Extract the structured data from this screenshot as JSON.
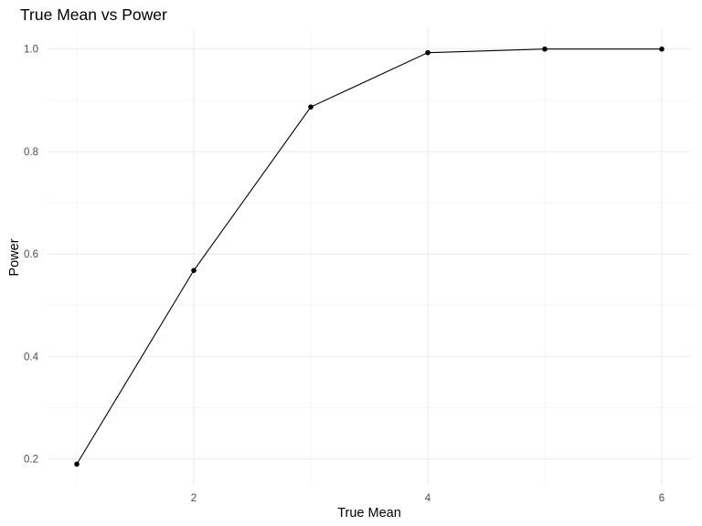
{
  "chart_data": {
    "type": "line",
    "title": "True Mean vs Power",
    "xlabel": "True Mean",
    "ylabel": "Power",
    "xlim": [
      1,
      6
    ],
    "ylim": [
      0.19,
      1.0
    ],
    "x_ticks": [
      2,
      4,
      6
    ],
    "x_minor_ticks": [
      1,
      3,
      5
    ],
    "y_ticks": [
      0.2,
      0.4,
      0.6,
      0.8,
      1.0
    ],
    "y_tick_labels": [
      "0.2",
      "0.4",
      "0.6",
      "0.8",
      "1.0"
    ],
    "y_minor_ticks": [
      0.3,
      0.5,
      0.7,
      0.9
    ],
    "grid": true,
    "legend": "none",
    "series": [
      {
        "x": [
          1,
          2,
          3,
          4,
          5,
          6
        ],
        "values": [
          0.19,
          0.568,
          0.887,
          0.993,
          1.0,
          1.0
        ],
        "color": "#000000",
        "markers": true
      }
    ]
  }
}
